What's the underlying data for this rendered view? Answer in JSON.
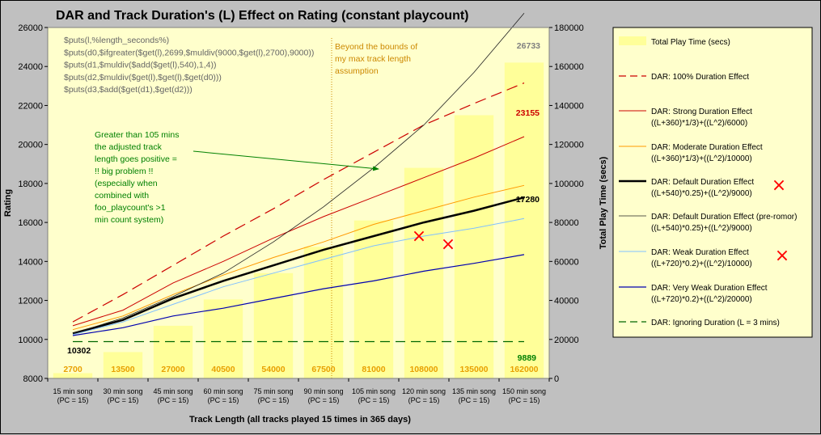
{
  "chart_data": {
    "type": "line",
    "title": "DAR and Track Duration's (L) Effect on Rating (constant playcount)",
    "xlabel": "Track Length (all tracks played 15 times in 365 days)",
    "ylabel": "Rating",
    "y2label": "Total Play Time (secs)",
    "ylim": [
      8000,
      26000
    ],
    "y2lim": [
      0,
      180000
    ],
    "yticks": [
      "8000",
      "10000",
      "12000",
      "14000",
      "16000",
      "18000",
      "20000",
      "22000",
      "24000",
      "26000"
    ],
    "y2ticks": [
      "0",
      "20000",
      "40000",
      "60000",
      "80000",
      "100000",
      "120000",
      "140000",
      "160000",
      "180000"
    ],
    "categories": [
      {
        "line1": "15 min song",
        "line2": "(PC = 15)"
      },
      {
        "line1": "30 min song",
        "line2": "(PC = 15)"
      },
      {
        "line1": "45 min song",
        "line2": "(PC = 15)"
      },
      {
        "line1": "60 min song",
        "line2": "(PC = 15)"
      },
      {
        "line1": "75 min song",
        "line2": "(PC = 15)"
      },
      {
        "line1": "90 min song",
        "line2": "(PC = 15)"
      },
      {
        "line1": "105 min song",
        "line2": "(PC = 15)"
      },
      {
        "line1": "120 min song",
        "line2": "(PC = 15)"
      },
      {
        "line1": "135 min song",
        "line2": "(PC = 15)"
      },
      {
        "line1": "150 min song",
        "line2": "(PC = 15)"
      }
    ],
    "bars": {
      "name": "Total Play Time (secs)",
      "axis": "right",
      "color": "#ffff99",
      "values": [
        2700,
        13500,
        27000,
        40500,
        54000,
        67500,
        81000,
        108000,
        135000,
        162000
      ],
      "labels": [
        "2700",
        "13500",
        "27000",
        "40500",
        "54000",
        "67500",
        "81000",
        "108000",
        "135000",
        "162000"
      ],
      "label_color": "#e8a000"
    },
    "series": [
      {
        "name": "DAR: 100% Duration Effect",
        "formula": "",
        "color": "#cc0000",
        "width": 1.2,
        "dash": "14,7",
        "values": [
          10900,
          12300,
          13800,
          15300,
          16700,
          18200,
          19600,
          21000,
          22100,
          23155
        ]
      },
      {
        "name": "DAR: Strong Duration Effect",
        "formula": "((L+360)*1/3)+((L^2)/6000)",
        "color": "#cc0000",
        "width": 1,
        "dash": "",
        "values": [
          10700,
          11500,
          12900,
          14000,
          15200,
          16300,
          17300,
          18300,
          19300,
          20400
        ]
      },
      {
        "name": "DAR: Moderate Duration Effect",
        "formula": "((L+360)*1/3)+((L^2)/10000)",
        "color": "#ff9900",
        "width": 1,
        "dash": "",
        "values": [
          10500,
          11200,
          12300,
          13300,
          14200,
          15000,
          15900,
          16600,
          17300,
          17900
        ]
      },
      {
        "name": "DAR: Default Duration Effect",
        "formula": "((L+540)*0.25)+((L^2)/9000)",
        "color": "#000000",
        "width": 2.5,
        "dash": "",
        "values": [
          10302,
          11000,
          12100,
          13000,
          13800,
          14600,
          15300,
          16000,
          16600,
          17280
        ]
      },
      {
        "name": "DAR: Default Duration Effect (pre-romor)",
        "formula": "((L+540)*0.25)+((L^2)/9000)",
        "color": "#202020",
        "width": 0.8,
        "dash": "",
        "values": [
          10302,
          11100,
          12200,
          13400,
          15000,
          16800,
          18800,
          21000,
          23700,
          26733
        ]
      },
      {
        "name": "DAR: Weak Duration Effect",
        "formula": "((L+720)*0.2)+((L^2)/10000)",
        "color": "#80c0ff",
        "width": 1,
        "dash": "",
        "values": [
          10250,
          10900,
          11800,
          12700,
          13400,
          14100,
          14800,
          15300,
          15700,
          16200
        ]
      },
      {
        "name": "DAR: Very Weak Duration Effect",
        "formula": "((L+720)*0.2)+((L^2)/20000)",
        "color": "#0000b0",
        "width": 1.2,
        "dash": "",
        "values": [
          10200,
          10600,
          11200,
          11600,
          12100,
          12600,
          13000,
          13500,
          13900,
          14350
        ]
      },
      {
        "name": "DAR: Ignoring Duration (L = 3 mins)",
        "formula": "",
        "color": "#006600",
        "width": 1.2,
        "dash": "12,7",
        "values": [
          9889,
          9889,
          9889,
          9889,
          9889,
          9889,
          9889,
          9889,
          9889,
          9889
        ]
      }
    ],
    "value_labels": [
      {
        "text": "10302",
        "color": "#000000"
      },
      {
        "text": "26733",
        "color": "#808080"
      },
      {
        "text": "23155",
        "color": "#cc0000"
      },
      {
        "text": "17280",
        "color": "#000000"
      },
      {
        "text": "9889",
        "color": "#008000"
      }
    ],
    "code_lines": [
      "$puts(l,%length_seconds%)",
      "$puts(d0,$ifgreater($get(l),2699,$muldiv(9000,$get(l),2700),9000))",
      "$puts(d1,$muldiv($add($get(l),540),1,4))",
      "$puts(d2,$muldiv($get(l),$get(l),$get(d0)))",
      "$puts(d3,$add($get(d1),$get(d2)))"
    ],
    "code_color": "#666666",
    "note_bounds": [
      "Beyond the bounds of",
      "my max track length",
      "assumption"
    ],
    "note_bounds_color": "#cc8800",
    "note_problem": [
      "Greater than 105 mins",
      "the adjusted track",
      "length goes positive =",
      "!! big problem !!",
      "(especially when",
      "combined with",
      "foo_playcount's >1",
      "min count system)"
    ],
    "note_problem_color": "#008000",
    "marker_color": "#ff0000",
    "marker_symbol": "×",
    "legend_marked": [
      "DAR: Default Duration Effect",
      "DAR: Weak Duration Effect"
    ],
    "plot_bg": "#ffffcc",
    "legend_bg": "#ffffcc"
  }
}
